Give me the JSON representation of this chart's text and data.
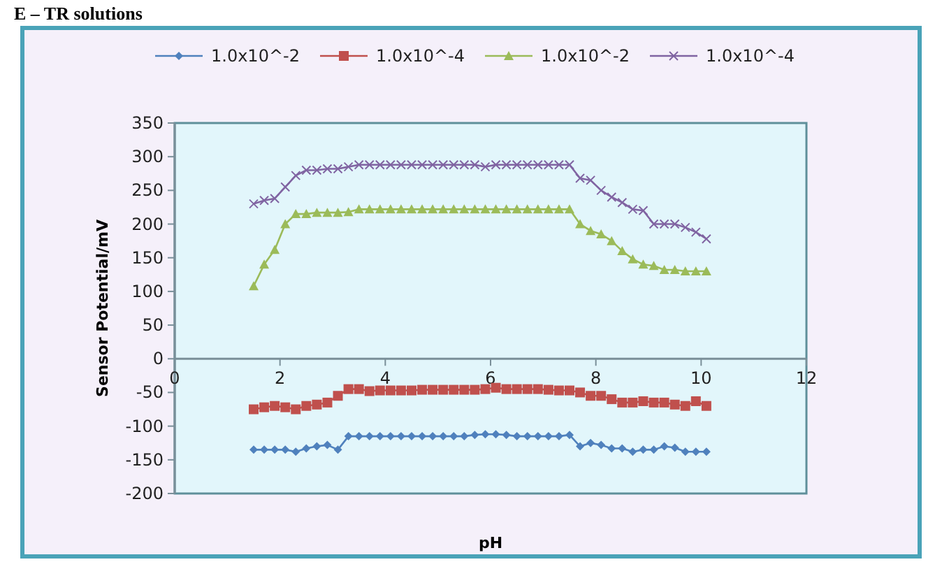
{
  "chart_data": {
    "type": "line",
    "title": "E – TR solutions",
    "xlabel": "pH",
    "ylabel": "Sensor Potential/mV",
    "x": [
      1.5,
      1.7,
      1.9,
      2.1,
      2.3,
      2.5,
      2.7,
      2.9,
      3.1,
      3.3,
      3.5,
      3.7,
      3.9,
      4.1,
      4.3,
      4.5,
      4.7,
      4.9,
      5.1,
      5.3,
      5.5,
      5.7,
      5.9,
      6.1,
      6.3,
      6.5,
      6.7,
      6.9,
      7.1,
      7.3,
      7.5,
      7.7,
      7.9,
      8.1,
      8.3,
      8.5,
      8.7,
      8.9,
      9.1,
      9.3,
      9.5,
      9.7,
      9.9,
      10.1
    ],
    "series": [
      {
        "name": "1.0x10^-2",
        "color": "#4f81bd",
        "marker": "diamond",
        "values": [
          -135,
          -135,
          -135,
          -135,
          -138,
          -133,
          -130,
          -128,
          -135,
          -115,
          -115,
          -115,
          -115,
          -115,
          -115,
          -115,
          -115,
          -115,
          -115,
          -115,
          -115,
          -113,
          -112,
          -112,
          -113,
          -115,
          -115,
          -115,
          -115,
          -115,
          -113,
          -130,
          -125,
          -128,
          -133,
          -133,
          -138,
          -135,
          -135,
          -130,
          -132,
          -138,
          -138,
          -138
        ]
      },
      {
        "name": "1.0x10^-4",
        "color": "#c0504d",
        "marker": "square",
        "values": [
          -75,
          -72,
          -70,
          -72,
          -75,
          -70,
          -68,
          -65,
          -55,
          -45,
          -45,
          -48,
          -47,
          -47,
          -47,
          -47,
          -46,
          -46,
          -46,
          -46,
          -46,
          -46,
          -45,
          -43,
          -45,
          -45,
          -45,
          -45,
          -46,
          -47,
          -47,
          -50,
          -55,
          -55,
          -60,
          -65,
          -65,
          -63,
          -65,
          -65,
          -68,
          -70,
          -63,
          -70
        ]
      },
      {
        "name": "1.0x10^-2",
        "color": "#9bbb59",
        "marker": "triangle",
        "values": [
          108,
          140,
          162,
          200,
          215,
          215,
          217,
          217,
          217,
          218,
          222,
          222,
          222,
          222,
          222,
          222,
          222,
          222,
          222,
          222,
          222,
          222,
          222,
          222,
          222,
          222,
          222,
          222,
          222,
          222,
          222,
          200,
          190,
          185,
          175,
          160,
          148,
          140,
          138,
          132,
          132,
          130,
          130,
          130
        ]
      },
      {
        "name": "1.0x10^-4",
        "color": "#8064a2",
        "marker": "cross",
        "values": [
          230,
          235,
          238,
          255,
          272,
          280,
          280,
          282,
          282,
          285,
          288,
          288,
          288,
          288,
          288,
          288,
          288,
          288,
          288,
          288,
          288,
          288,
          285,
          288,
          288,
          288,
          288,
          288,
          288,
          288,
          288,
          268,
          265,
          250,
          240,
          232,
          222,
          220,
          200,
          200,
          200,
          195,
          188,
          178
        ]
      }
    ],
    "xlim": [
      0,
      12
    ],
    "xticks": [
      0,
      2,
      4,
      6,
      8,
      10,
      12
    ],
    "ylim": [
      -200,
      350
    ],
    "yticks": [
      -200,
      -150,
      -100,
      -50,
      0,
      50,
      100,
      150,
      200,
      250,
      300,
      350
    ],
    "legend": "top",
    "grid": false
  }
}
